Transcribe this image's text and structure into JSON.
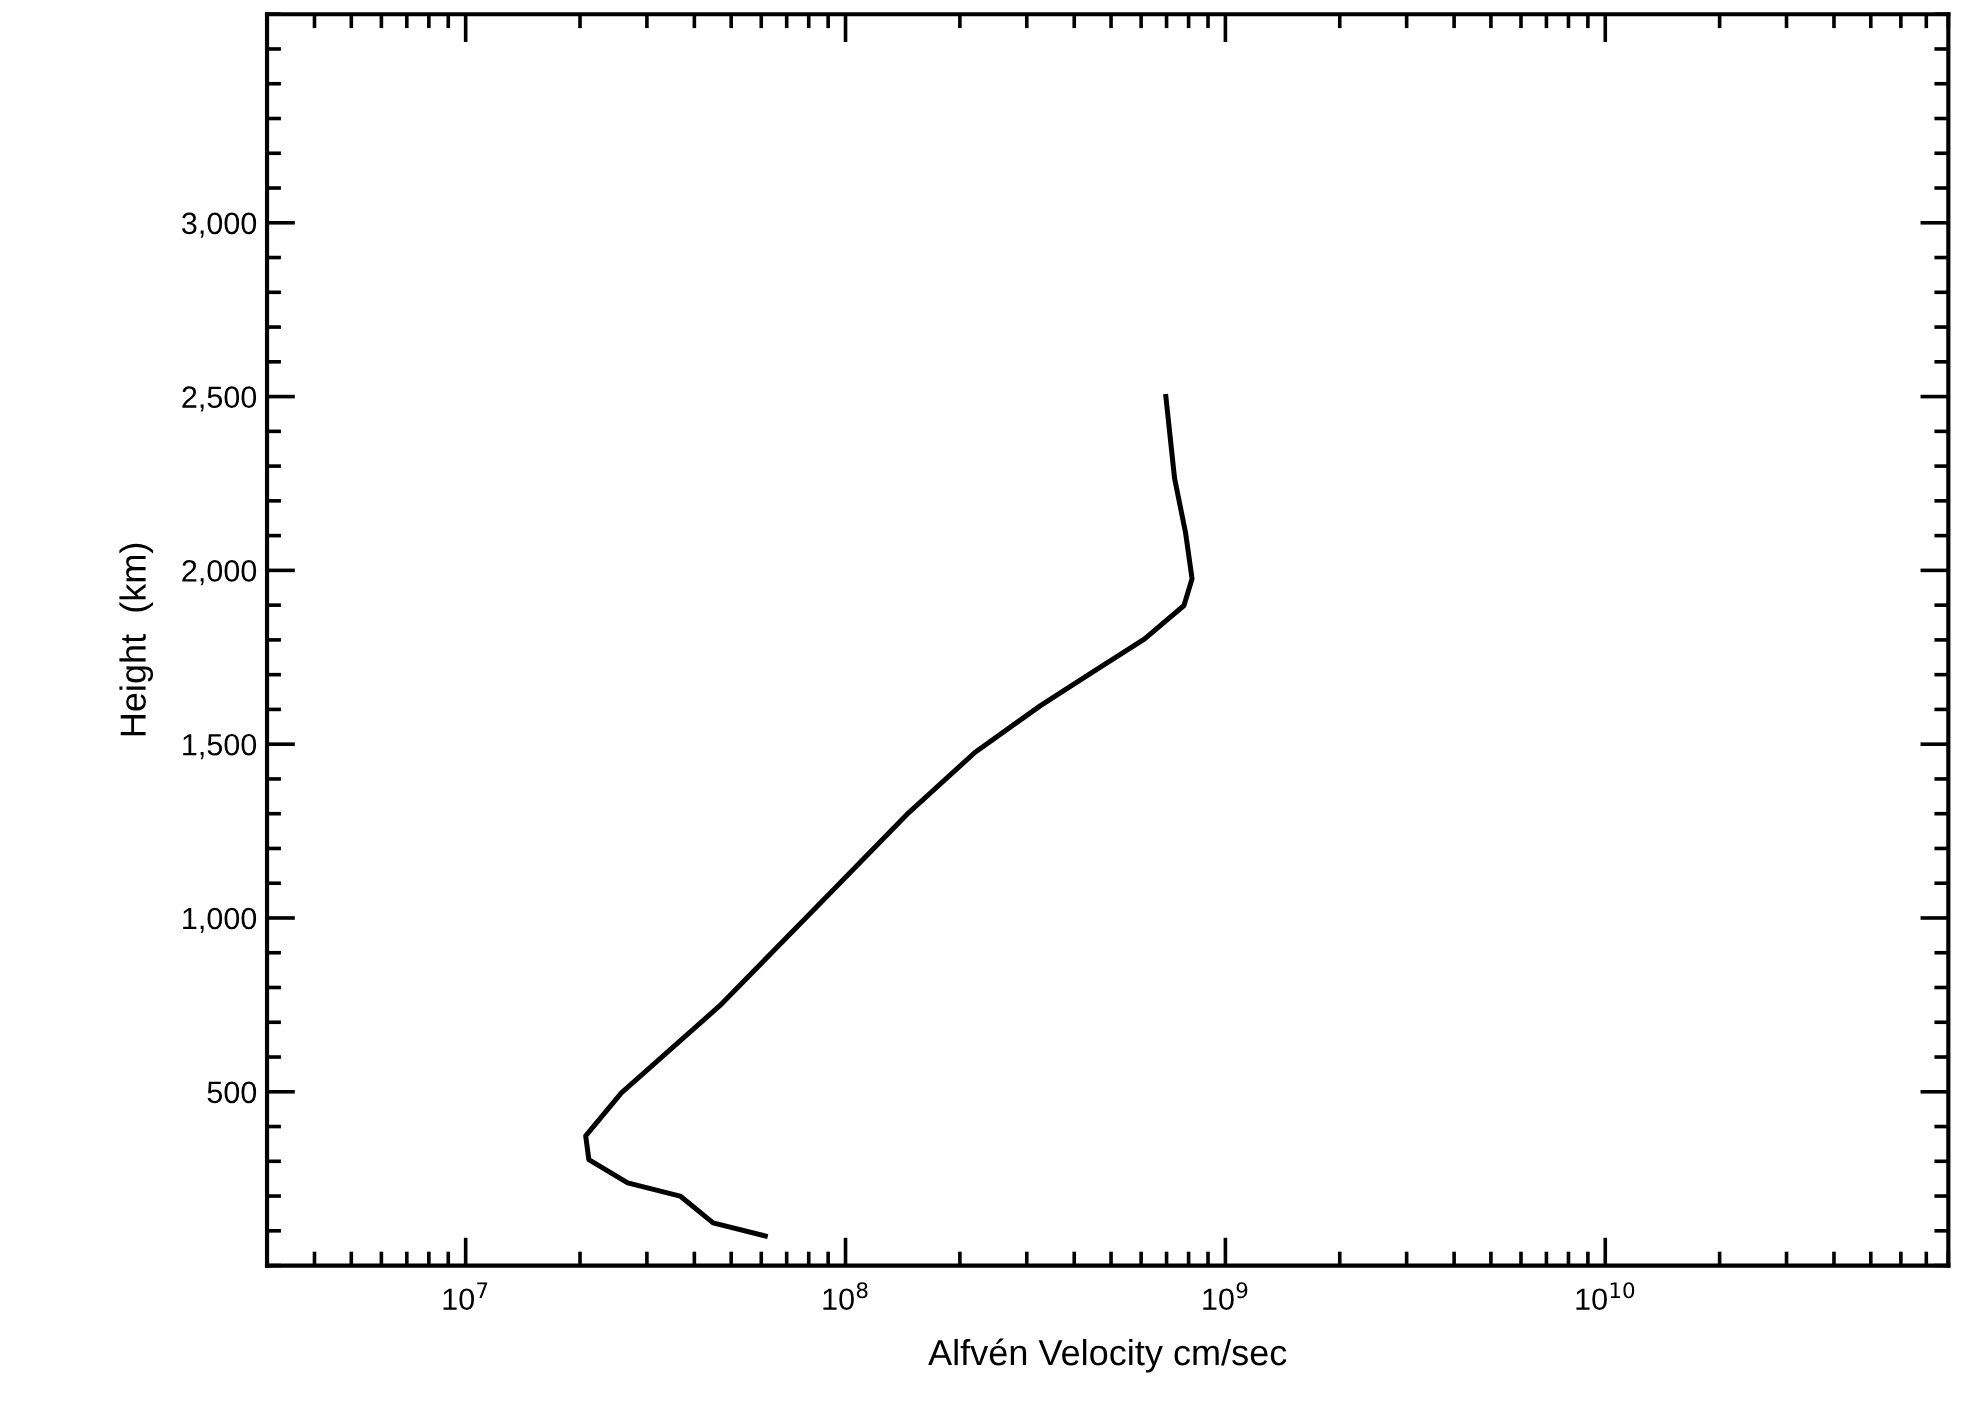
{
  "chart_data": {
    "type": "line",
    "xlabel": "Alfvén Velocity cm/sec",
    "ylabel": "Height  (km)",
    "log": "x",
    "grid": false,
    "marker": "none",
    "line_style": "solid",
    "xlim": [
      3000000,
      80000000000
    ],
    "xticks": [
      {
        "value": 10000000,
        "label": "10$^{7}$"
      },
      {
        "value": 100000000,
        "label": "10$^{8}$"
      },
      {
        "value": 1000000000,
        "label": "10$^{9}$"
      },
      {
        "value": 10000000000,
        "label": "10$^{10}$"
      }
    ],
    "ylim": [
      0,
      3600
    ],
    "yticks": [
      500,
      {
        "value": 1000,
        "label": "1,000"
      },
      {
        "value": 1500,
        "label": "1,500"
      },
      {
        "value": 2000,
        "label": "2,000"
      },
      {
        "value": 2500,
        "label": "2,500"
      },
      {
        "value": 3000,
        "label": "3,000"
      }
    ],
    "series": [
      {
        "color": "#000000",
        "x": [
          697000000,
          735000000,
          785000000,
          817000000,
          778000000,
          613000000,
          447000000,
          326000000,
          219000000,
          147000000,
          84500000,
          46600000,
          25700000,
          20700000,
          21100000,
          26700000,
          36700000,
          44800000,
          61500000
        ],
        "values": [
          2500,
          2264,
          2110,
          1976,
          1899,
          1803,
          1707,
          1611,
          1476,
          1304,
          1035,
          747,
          497,
          373,
          305,
          238,
          200,
          123,
          85
        ]
      }
    ]
  }
}
